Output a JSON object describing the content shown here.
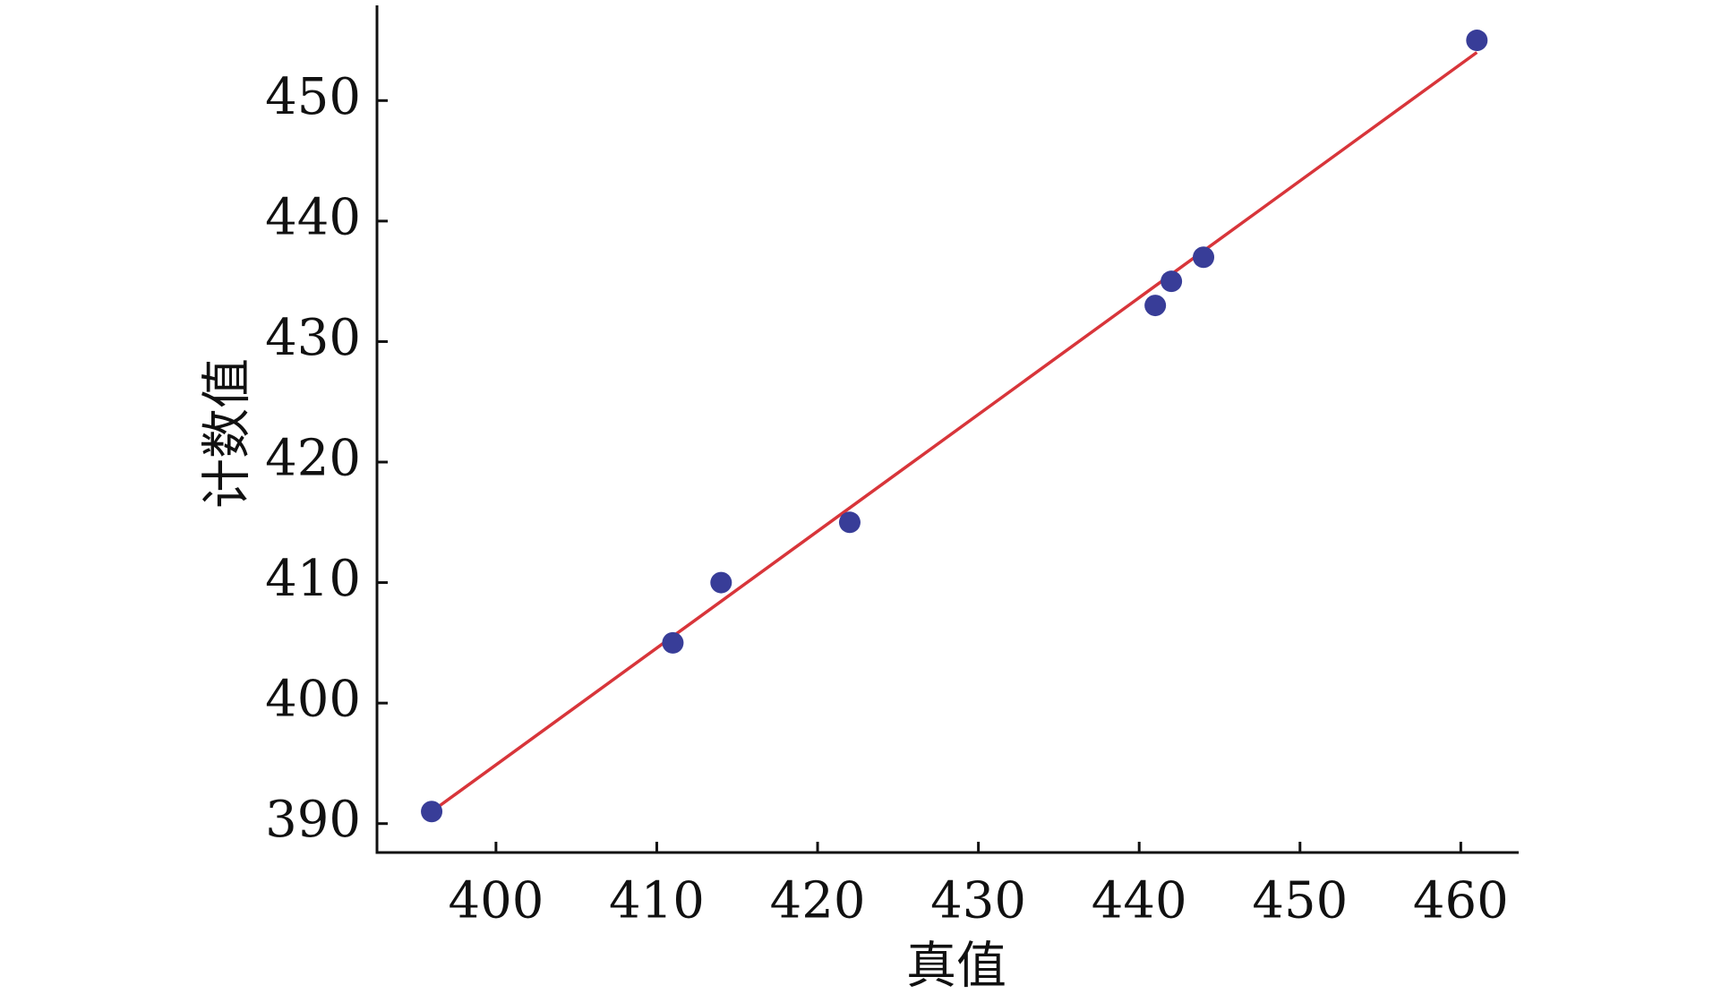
{
  "chart_data": {
    "type": "scatter",
    "xlabel": "真值",
    "ylabel": "计数值",
    "x": [
      396,
      411,
      414,
      422,
      441,
      442,
      444,
      461
    ],
    "series": [
      {
        "color": "#383d98",
        "values": [
          391,
          405,
          410,
          415,
          433,
          435,
          437,
          455
        ]
      }
    ],
    "fit_line": {
      "color": "#d8353a",
      "x": [
        396,
        461
      ],
      "y": [
        391,
        454
      ]
    },
    "xlim": [
      392.6,
      463.6
    ],
    "xticks": [
      400,
      410,
      420,
      430,
      440,
      450,
      460
    ],
    "ylim": [
      387.6,
      457.9
    ],
    "yticks": [
      390,
      400,
      410,
      420,
      430,
      440,
      450
    ],
    "grid": false
  }
}
